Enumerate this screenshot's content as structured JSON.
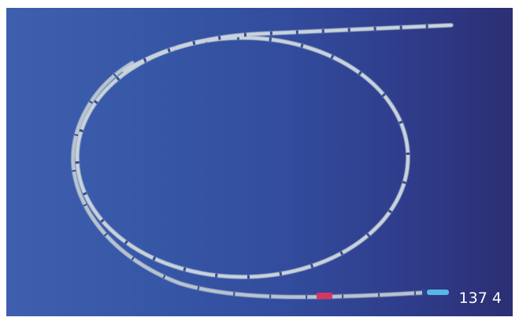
{
  "photo": {
    "subject": "catheter-wire-loop",
    "label": "137 4",
    "colors": {
      "background_left": "#3f5fae",
      "background_right": "#2c2f73",
      "wire": "#c8d3dc",
      "red_marker": "#d9365f",
      "blue_tip": "#57b7e6"
    }
  }
}
